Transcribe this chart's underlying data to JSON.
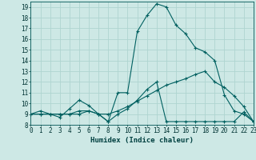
{
  "title": "",
  "xlabel": "Humidex (Indice chaleur)",
  "ylabel": "",
  "background_color": "#cde8e5",
  "grid_color": "#afd4d0",
  "line_color": "#006060",
  "xlim": [
    0,
    23
  ],
  "ylim": [
    8,
    19.5
  ],
  "xticks": [
    0,
    1,
    2,
    3,
    4,
    5,
    6,
    7,
    8,
    9,
    10,
    11,
    12,
    13,
    14,
    15,
    16,
    17,
    18,
    19,
    20,
    21,
    22,
    23
  ],
  "yticks": [
    8,
    9,
    10,
    11,
    12,
    13,
    14,
    15,
    16,
    17,
    18,
    19
  ],
  "line1_x": [
    0,
    1,
    2,
    3,
    4,
    5,
    6,
    7,
    8,
    9,
    10,
    11,
    12,
    13,
    14,
    15,
    16,
    17,
    18,
    19,
    20,
    21,
    22,
    23
  ],
  "line1_y": [
    9.0,
    9.3,
    9.0,
    8.7,
    9.5,
    10.3,
    9.8,
    9.0,
    8.3,
    11.0,
    11.0,
    16.7,
    18.2,
    19.3,
    19.0,
    17.3,
    16.5,
    15.2,
    14.8,
    14.0,
    10.8,
    9.3,
    9.0,
    8.3
  ],
  "line2_x": [
    0,
    1,
    2,
    3,
    4,
    5,
    6,
    7,
    8,
    9,
    10,
    11,
    12,
    13,
    14,
    15,
    16,
    17,
    18,
    19,
    20,
    21,
    22,
    23
  ],
  "line2_y": [
    9.0,
    9.0,
    9.0,
    9.0,
    9.0,
    9.3,
    9.3,
    9.0,
    8.3,
    9.0,
    9.5,
    10.3,
    11.3,
    12.0,
    8.3,
    8.3,
    8.3,
    8.3,
    8.3,
    8.3,
    8.3,
    8.3,
    9.2,
    8.3
  ],
  "line3_x": [
    0,
    1,
    2,
    3,
    4,
    5,
    6,
    7,
    8,
    9,
    10,
    11,
    12,
    13,
    14,
    15,
    16,
    17,
    18,
    19,
    20,
    21,
    22,
    23
  ],
  "line3_y": [
    9.0,
    9.0,
    9.0,
    9.0,
    9.0,
    9.0,
    9.3,
    9.0,
    9.0,
    9.3,
    9.7,
    10.2,
    10.7,
    11.2,
    11.7,
    12.0,
    12.3,
    12.7,
    13.0,
    12.0,
    11.5,
    10.7,
    9.7,
    8.3
  ],
  "xlabel_fontsize": 6.5,
  "tick_fontsize": 5.5
}
